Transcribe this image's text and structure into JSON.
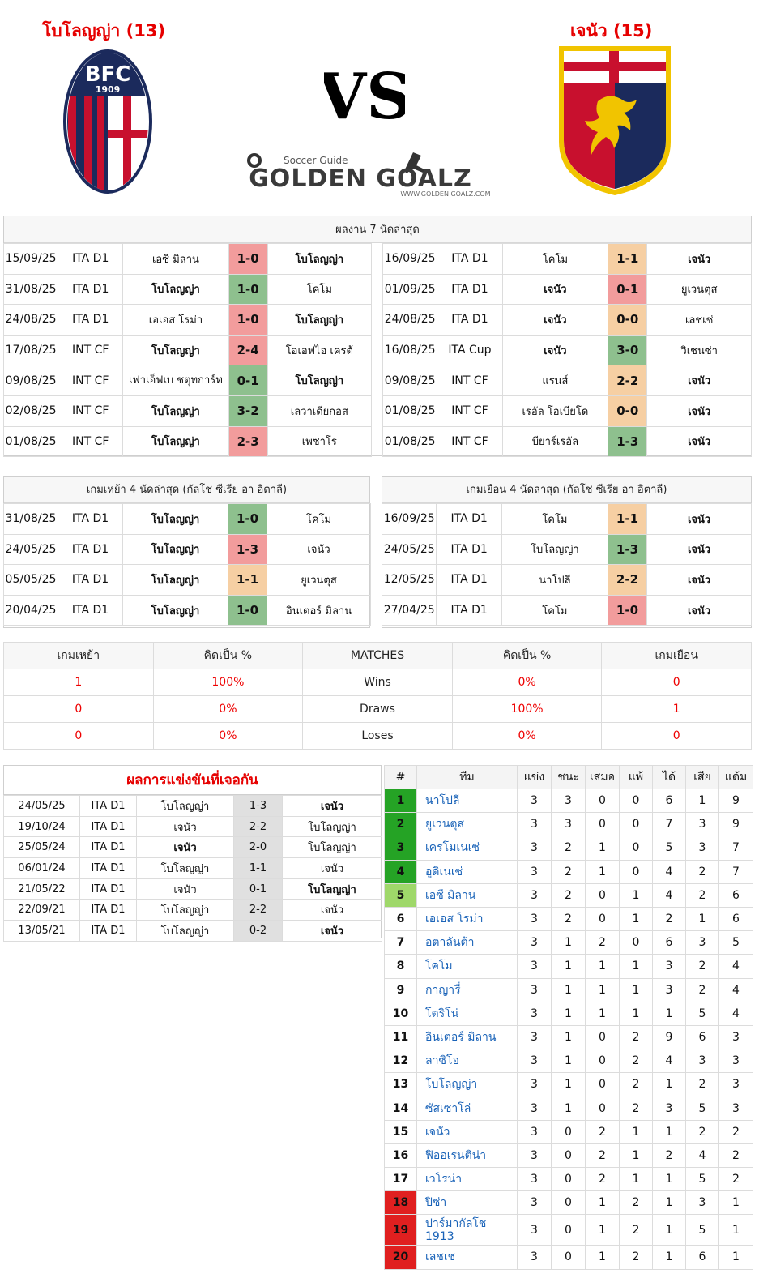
{
  "header": {
    "home_title": "โบโลญญ่า (13)",
    "away_title": "เจนัว (15)",
    "vs_text": "VS",
    "brand_small": "Soccer Guide",
    "brand_big": "GOLDEN GOALZ",
    "brand_url": "WWW.GOLDEN GOALZ.COM",
    "home_logo_text": "BFC",
    "home_logo_year": "1909"
  },
  "last7": {
    "title": "ผลงาน 7 นัดล่าสุด",
    "home_rows": [
      {
        "date": "15/09/25",
        "comp": "ITA D1",
        "team1": "เอซี มิลาน",
        "score": "1-0",
        "team2": "โบโลญญ่า",
        "color": "red",
        "b1": false,
        "b2": true
      },
      {
        "date": "31/08/25",
        "comp": "ITA D1",
        "team1": "โบโลญญ่า",
        "score": "1-0",
        "team2": "โคโม",
        "color": "green",
        "b1": true,
        "b2": false
      },
      {
        "date": "24/08/25",
        "comp": "ITA D1",
        "team1": "เอเอส โรม่า",
        "score": "1-0",
        "team2": "โบโลญญ่า",
        "color": "red",
        "b1": false,
        "b2": true
      },
      {
        "date": "17/08/25",
        "comp": "INT CF",
        "team1": "โบโลญญ่า",
        "score": "2-4",
        "team2": "โอเอฟไอ เครต้",
        "color": "red",
        "b1": true,
        "b2": false
      },
      {
        "date": "09/08/25",
        "comp": "INT CF",
        "team1": "เฟาเอ็ฟเบ ชตุทการ์ท",
        "score": "0-1",
        "team2": "โบโลญญ่า",
        "color": "green",
        "b1": false,
        "b2": true
      },
      {
        "date": "02/08/25",
        "comp": "INT CF",
        "team1": "โบโลญญ่า",
        "score": "3-2",
        "team2": "เลวาเดียกอส",
        "color": "green",
        "b1": true,
        "b2": false
      },
      {
        "date": "01/08/25",
        "comp": "INT CF",
        "team1": "โบโลญญ่า",
        "score": "2-3",
        "team2": "เพซาโร",
        "color": "red",
        "b1": true,
        "b2": false
      }
    ],
    "away_rows": [
      {
        "date": "16/09/25",
        "comp": "ITA D1",
        "team1": "โคโม",
        "score": "1-1",
        "team2": "เจนัว",
        "color": "orange",
        "b1": false,
        "b2": true
      },
      {
        "date": "01/09/25",
        "comp": "ITA D1",
        "team1": "เจนัว",
        "score": "0-1",
        "team2": "ยูเวนตุส",
        "color": "red",
        "b1": true,
        "b2": false
      },
      {
        "date": "24/08/25",
        "comp": "ITA D1",
        "team1": "เจนัว",
        "score": "0-0",
        "team2": "เลชเช่",
        "color": "orange",
        "b1": true,
        "b2": false
      },
      {
        "date": "16/08/25",
        "comp": "ITA Cup",
        "team1": "เจนัว",
        "score": "3-0",
        "team2": "วิเชนซ่า",
        "color": "green",
        "b1": true,
        "b2": false
      },
      {
        "date": "09/08/25",
        "comp": "INT CF",
        "team1": "แรนส์",
        "score": "2-2",
        "team2": "เจนัว",
        "color": "orange",
        "b1": false,
        "b2": true
      },
      {
        "date": "01/08/25",
        "comp": "INT CF",
        "team1": "เรอัล โอเบียโด",
        "score": "0-0",
        "team2": "เจนัว",
        "color": "orange",
        "b1": false,
        "b2": true
      },
      {
        "date": "01/08/25",
        "comp": "INT CF",
        "team1": "บียาร์เรอัล",
        "score": "1-3",
        "team2": "เจนัว",
        "color": "green",
        "b1": false,
        "b2": true
      }
    ]
  },
  "last4": {
    "home_title": "เกมเหย้า 4 นัดล่าสุด (กัลโช่ ซีเรีย อา อิตาลี)",
    "away_title": "เกมเยือน 4 นัดล่าสุด (กัลโช่ ซีเรีย อา อิตาลี)",
    "home_rows": [
      {
        "date": "31/08/25",
        "comp": "ITA D1",
        "team1": "โบโลญญ่า",
        "score": "1-0",
        "team2": "โคโม",
        "color": "green",
        "b1": true,
        "b2": false
      },
      {
        "date": "24/05/25",
        "comp": "ITA D1",
        "team1": "โบโลญญ่า",
        "score": "1-3",
        "team2": "เจนัว",
        "color": "red",
        "b1": true,
        "b2": false
      },
      {
        "date": "05/05/25",
        "comp": "ITA D1",
        "team1": "โบโลญญ่า",
        "score": "1-1",
        "team2": "ยูเวนตุส",
        "color": "orange",
        "b1": true,
        "b2": false
      },
      {
        "date": "20/04/25",
        "comp": "ITA D1",
        "team1": "โบโลญญ่า",
        "score": "1-0",
        "team2": "อินเตอร์ มิลาน",
        "color": "green",
        "b1": true,
        "b2": false
      }
    ],
    "away_rows": [
      {
        "date": "16/09/25",
        "comp": "ITA D1",
        "team1": "โคโม",
        "score": "1-1",
        "team2": "เจนัว",
        "color": "orange",
        "b1": false,
        "b2": true
      },
      {
        "date": "24/05/25",
        "comp": "ITA D1",
        "team1": "โบโลญญ่า",
        "score": "1-3",
        "team2": "เจนัว",
        "color": "green",
        "b1": false,
        "b2": true
      },
      {
        "date": "12/05/25",
        "comp": "ITA D1",
        "team1": "นาโปลี",
        "score": "2-2",
        "team2": "เจนัว",
        "color": "orange",
        "b1": false,
        "b2": true
      },
      {
        "date": "27/04/25",
        "comp": "ITA D1",
        "team1": "โคโม",
        "score": "1-0",
        "team2": "เจนัว",
        "color": "red",
        "b1": false,
        "b2": true
      }
    ]
  },
  "summary": {
    "headers": [
      "เกมเหย้า",
      "คิดเป็น %",
      "MATCHES",
      "คิดเป็น %",
      "เกมเยือน"
    ],
    "rows": [
      [
        "1",
        "100%",
        "Wins",
        "0%",
        "0"
      ],
      [
        "0",
        "0%",
        "Draws",
        "100%",
        "1"
      ],
      [
        "0",
        "0%",
        "Loses",
        "0%",
        "0"
      ]
    ]
  },
  "h2h": {
    "title": "ผลการแข่งขันที่เจอกัน",
    "rows": [
      {
        "date": "24/05/25",
        "comp": "ITA D1",
        "team1": "โบโลญญ่า",
        "score": "1-3",
        "team2": "เจนัว",
        "b1": false,
        "b2": true
      },
      {
        "date": "19/10/24",
        "comp": "ITA D1",
        "team1": "เจนัว",
        "score": "2-2",
        "team2": "โบโลญญ่า",
        "b1": false,
        "b2": false
      },
      {
        "date": "25/05/24",
        "comp": "ITA D1",
        "team1": "เจนัว",
        "score": "2-0",
        "team2": "โบโลญญ่า",
        "b1": true,
        "b2": false
      },
      {
        "date": "06/01/24",
        "comp": "ITA D1",
        "team1": "โบโลญญ่า",
        "score": "1-1",
        "team2": "เจนัว",
        "b1": false,
        "b2": false
      },
      {
        "date": "21/05/22",
        "comp": "ITA D1",
        "team1": "เจนัว",
        "score": "0-1",
        "team2": "โบโลญญ่า",
        "b1": false,
        "b2": true
      },
      {
        "date": "22/09/21",
        "comp": "ITA D1",
        "team1": "โบโลญญ่า",
        "score": "2-2",
        "team2": "เจนัว",
        "b1": false,
        "b2": false
      },
      {
        "date": "13/05/21",
        "comp": "ITA D1",
        "team1": "โบโลญญ่า",
        "score": "0-2",
        "team2": "เจนัว",
        "b1": false,
        "b2": true
      }
    ]
  },
  "standings": {
    "headers": [
      "#",
      "ทีม",
      "แข่ง",
      "ชนะ",
      "เสมอ",
      "แพ้",
      "ได้",
      "เสีย",
      "แต้ม"
    ],
    "rows": [
      {
        "pos": "1",
        "team": "นาโปลี",
        "p": "3",
        "w": "3",
        "d": "0",
        "l": "0",
        "gf": "6",
        "ga": "1",
        "pts": "9",
        "zone": "g"
      },
      {
        "pos": "2",
        "team": "ยูเวนตุส",
        "p": "3",
        "w": "3",
        "d": "0",
        "l": "0",
        "gf": "7",
        "ga": "3",
        "pts": "9",
        "zone": "g"
      },
      {
        "pos": "3",
        "team": "เครโมเนเซ่",
        "p": "3",
        "w": "2",
        "d": "1",
        "l": "0",
        "gf": "5",
        "ga": "3",
        "pts": "7",
        "zone": "g"
      },
      {
        "pos": "4",
        "team": "อูดิเนเซ่",
        "p": "3",
        "w": "2",
        "d": "1",
        "l": "0",
        "gf": "4",
        "ga": "2",
        "pts": "7",
        "zone": "g"
      },
      {
        "pos": "5",
        "team": "เอซี มิลาน",
        "p": "3",
        "w": "2",
        "d": "0",
        "l": "1",
        "gf": "4",
        "ga": "2",
        "pts": "6",
        "zone": "lg"
      },
      {
        "pos": "6",
        "team": "เอเอส โรม่า",
        "p": "3",
        "w": "2",
        "d": "0",
        "l": "1",
        "gf": "2",
        "ga": "1",
        "pts": "6",
        "zone": ""
      },
      {
        "pos": "7",
        "team": "อตาลันต้า",
        "p": "3",
        "w": "1",
        "d": "2",
        "l": "0",
        "gf": "6",
        "ga": "3",
        "pts": "5",
        "zone": ""
      },
      {
        "pos": "8",
        "team": "โคโม",
        "p": "3",
        "w": "1",
        "d": "1",
        "l": "1",
        "gf": "3",
        "ga": "2",
        "pts": "4",
        "zone": ""
      },
      {
        "pos": "9",
        "team": "กาญารี่",
        "p": "3",
        "w": "1",
        "d": "1",
        "l": "1",
        "gf": "3",
        "ga": "2",
        "pts": "4",
        "zone": ""
      },
      {
        "pos": "10",
        "team": "โตริโน่",
        "p": "3",
        "w": "1",
        "d": "1",
        "l": "1",
        "gf": "1",
        "ga": "5",
        "pts": "4",
        "zone": ""
      },
      {
        "pos": "11",
        "team": "อินเตอร์ มิลาน",
        "p": "3",
        "w": "1",
        "d": "0",
        "l": "2",
        "gf": "9",
        "ga": "6",
        "pts": "3",
        "zone": ""
      },
      {
        "pos": "12",
        "team": "ลาซิโอ",
        "p": "3",
        "w": "1",
        "d": "0",
        "l": "2",
        "gf": "4",
        "ga": "3",
        "pts": "3",
        "zone": ""
      },
      {
        "pos": "13",
        "team": "โบโลญญ่า",
        "p": "3",
        "w": "1",
        "d": "0",
        "l": "2",
        "gf": "1",
        "ga": "2",
        "pts": "3",
        "zone": ""
      },
      {
        "pos": "14",
        "team": "ซัสเซาโล่",
        "p": "3",
        "w": "1",
        "d": "0",
        "l": "2",
        "gf": "3",
        "ga": "5",
        "pts": "3",
        "zone": ""
      },
      {
        "pos": "15",
        "team": "เจนัว",
        "p": "3",
        "w": "0",
        "d": "2",
        "l": "1",
        "gf": "1",
        "ga": "2",
        "pts": "2",
        "zone": ""
      },
      {
        "pos": "16",
        "team": "ฟิออเรนติน่า",
        "p": "3",
        "w": "0",
        "d": "2",
        "l": "1",
        "gf": "2",
        "ga": "4",
        "pts": "2",
        "zone": ""
      },
      {
        "pos": "17",
        "team": "เวโรน่า",
        "p": "3",
        "w": "0",
        "d": "2",
        "l": "1",
        "gf": "1",
        "ga": "5",
        "pts": "2",
        "zone": ""
      },
      {
        "pos": "18",
        "team": "ปิซ่า",
        "p": "3",
        "w": "0",
        "d": "1",
        "l": "2",
        "gf": "1",
        "ga": "3",
        "pts": "1",
        "zone": "r"
      },
      {
        "pos": "19",
        "team": "ปาร์มากัลโช 1913",
        "p": "3",
        "w": "0",
        "d": "1",
        "l": "2",
        "gf": "1",
        "ga": "5",
        "pts": "1",
        "zone": "r"
      },
      {
        "pos": "20",
        "team": "เลชเช่",
        "p": "3",
        "w": "0",
        "d": "1",
        "l": "2",
        "gf": "1",
        "ga": "6",
        "pts": "1",
        "zone": "r"
      }
    ]
  },
  "colors": {
    "title_red": "#e60000",
    "score_green": "#8ec08e",
    "score_red": "#f29c9c",
    "score_orange": "#f6cfa3",
    "team_link": "#1a63b8"
  }
}
